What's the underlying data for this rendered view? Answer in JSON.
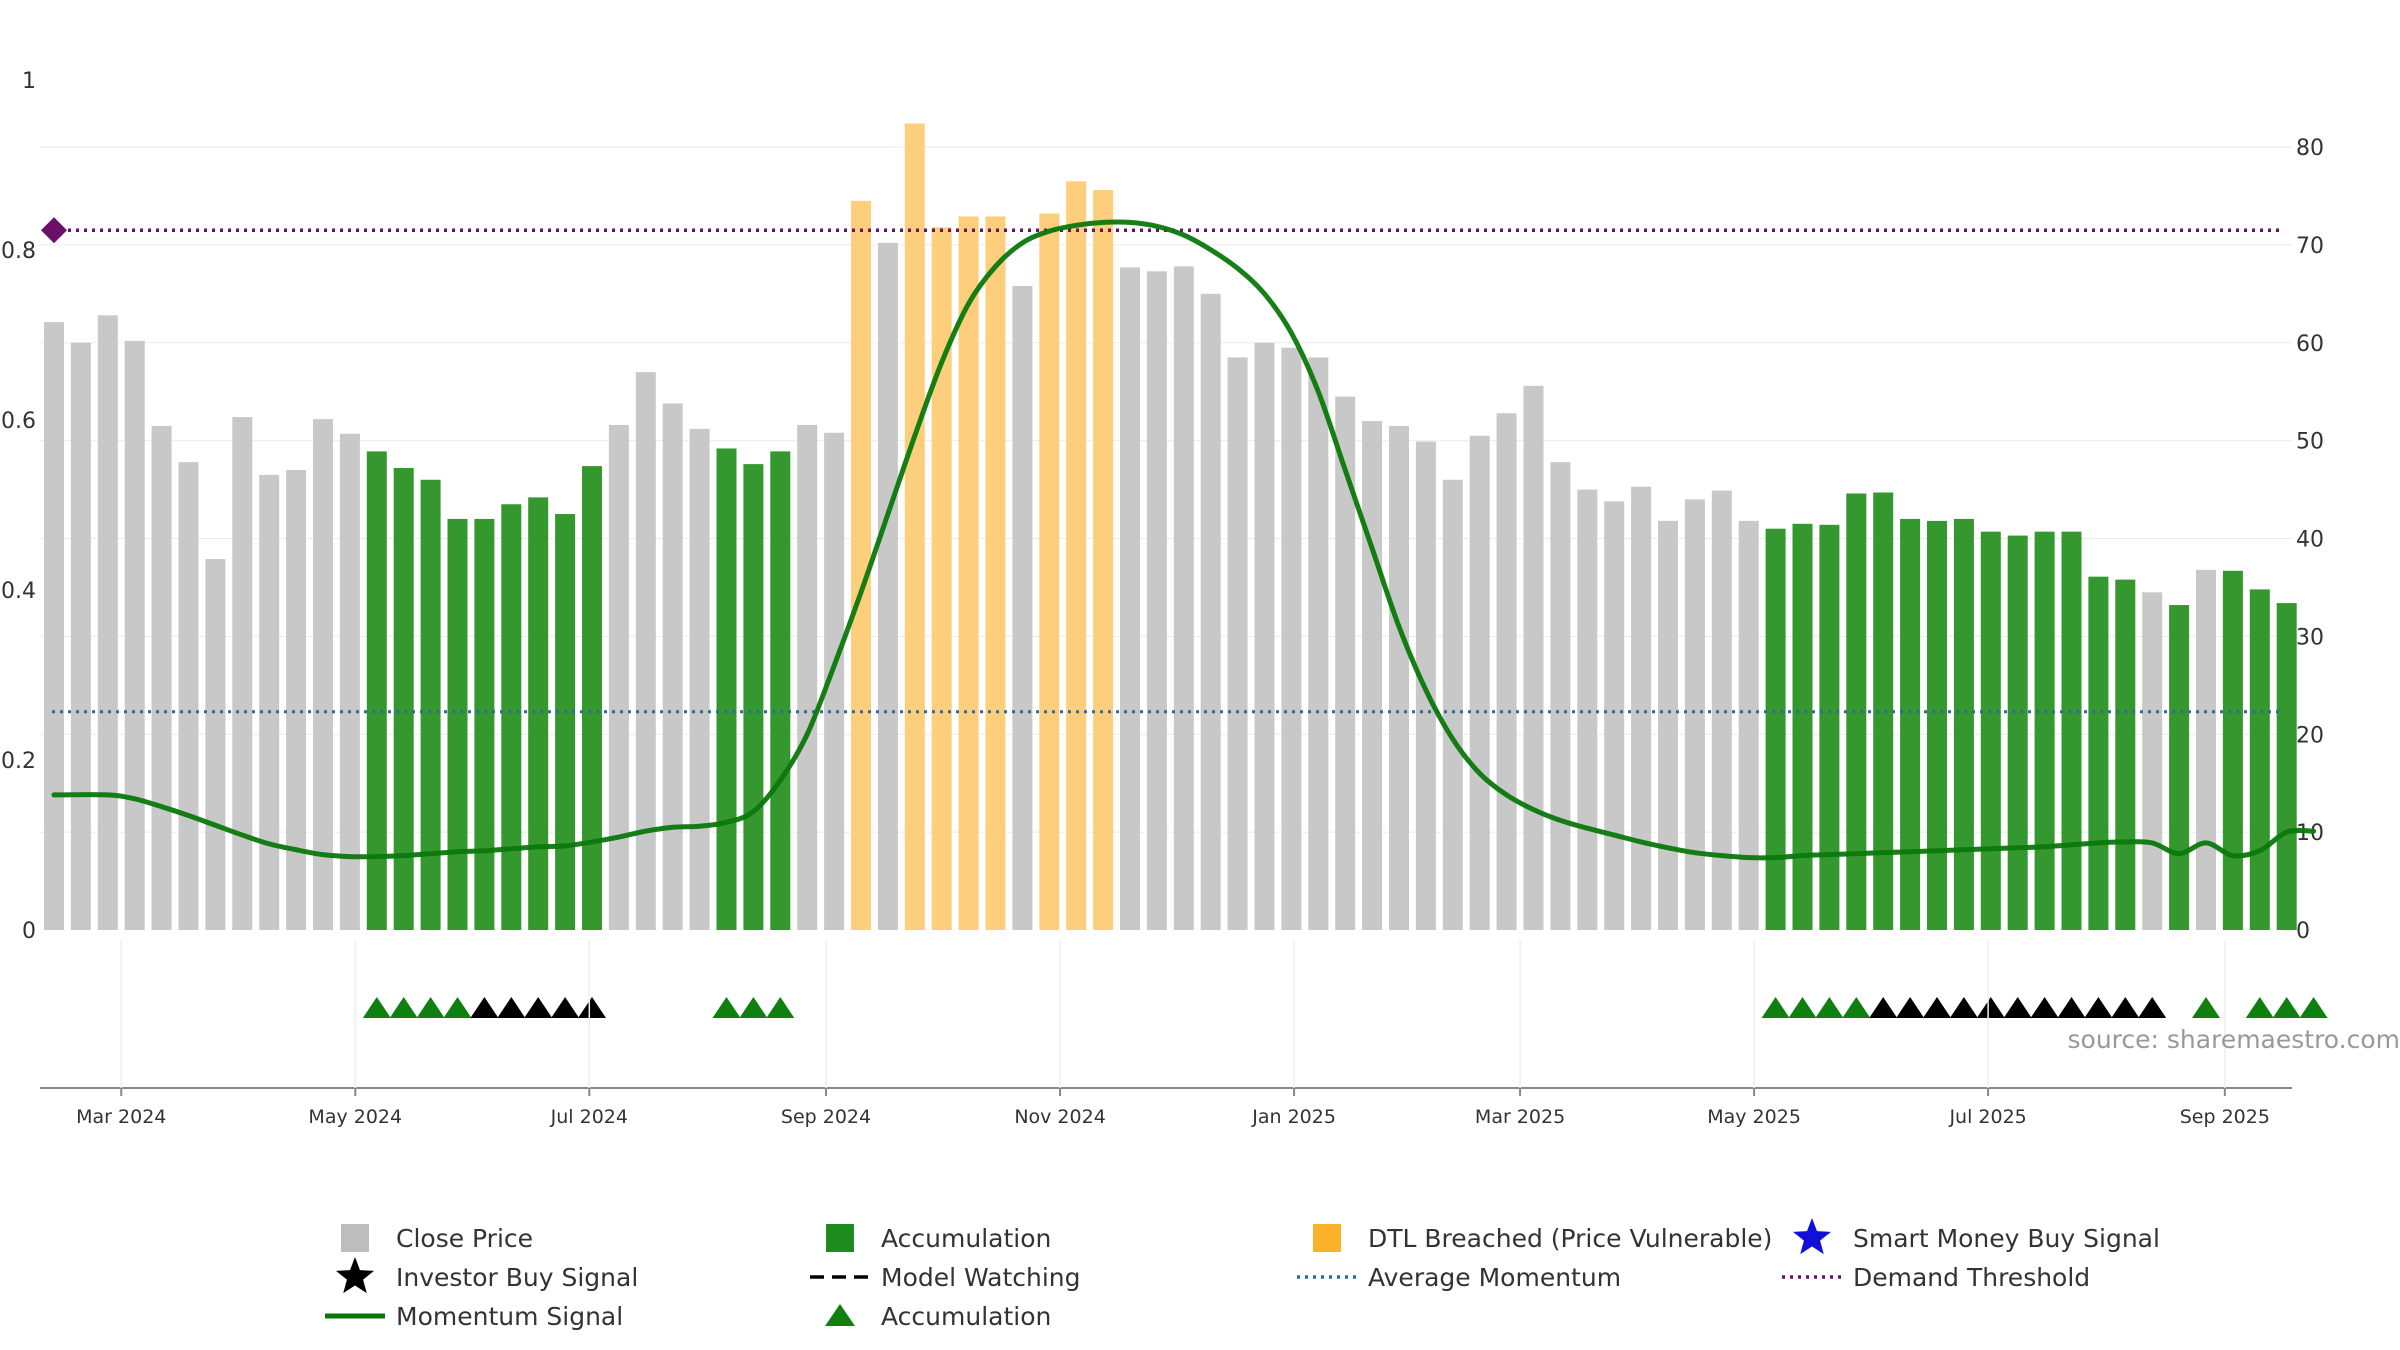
{
  "chart_data": {
    "type": "bar",
    "source": "source: sharemaestro.com",
    "left_axis": {
      "ticks": [
        "0",
        "0.2",
        "0.4",
        "0.6",
        "0.8",
        "1"
      ],
      "range": [
        0,
        1
      ]
    },
    "right_axis": {
      "ticks": [
        "0",
        "10",
        "20",
        "30",
        "40",
        "50",
        "60",
        "70",
        "80"
      ],
      "range": [
        0,
        80
      ]
    },
    "x_axis": {
      "ticks": [
        {
          "label": "Mar 2024",
          "index": 2.5
        },
        {
          "label": "May 2024",
          "index": 11.2
        },
        {
          "label": "Jul 2024",
          "index": 19.9
        },
        {
          "label": "Sep 2024",
          "index": 28.7
        },
        {
          "label": "Nov 2024",
          "index": 37.4
        },
        {
          "label": "Jan 2025",
          "index": 46.1
        },
        {
          "label": "Mar 2025",
          "index": 54.5
        },
        {
          "label": "May 2025",
          "index": 63.2
        },
        {
          "label": "Jul 2025",
          "index": 71.9
        },
        {
          "label": "Sep 2025",
          "index": 80.7
        }
      ]
    },
    "bars": [
      {
        "v": 62.1,
        "c": "gray"
      },
      {
        "v": 60.0,
        "c": "gray"
      },
      {
        "v": 62.8,
        "c": "gray"
      },
      {
        "v": 60.2,
        "c": "gray"
      },
      {
        "v": 51.5,
        "c": "gray"
      },
      {
        "v": 47.8,
        "c": "gray"
      },
      {
        "v": 37.9,
        "c": "gray"
      },
      {
        "v": 52.4,
        "c": "gray"
      },
      {
        "v": 46.5,
        "c": "gray"
      },
      {
        "v": 47.0,
        "c": "gray"
      },
      {
        "v": 52.2,
        "c": "gray"
      },
      {
        "v": 50.7,
        "c": "gray"
      },
      {
        "v": 48.9,
        "c": "green"
      },
      {
        "v": 47.2,
        "c": "green"
      },
      {
        "v": 46.0,
        "c": "green"
      },
      {
        "v": 42.0,
        "c": "green"
      },
      {
        "v": 42.0,
        "c": "green"
      },
      {
        "v": 43.5,
        "c": "green"
      },
      {
        "v": 44.2,
        "c": "green"
      },
      {
        "v": 42.5,
        "c": "green"
      },
      {
        "v": 47.4,
        "c": "green"
      },
      {
        "v": 51.6,
        "c": "gray"
      },
      {
        "v": 57.0,
        "c": "gray"
      },
      {
        "v": 53.8,
        "c": "gray"
      },
      {
        "v": 51.2,
        "c": "gray"
      },
      {
        "v": 49.2,
        "c": "green"
      },
      {
        "v": 47.6,
        "c": "green"
      },
      {
        "v": 48.9,
        "c": "green"
      },
      {
        "v": 51.6,
        "c": "gray"
      },
      {
        "v": 50.8,
        "c": "gray"
      },
      {
        "v": 74.5,
        "c": "orange"
      },
      {
        "v": 70.2,
        "c": "gray"
      },
      {
        "v": 82.4,
        "c": "orange"
      },
      {
        "v": 71.8,
        "c": "orange"
      },
      {
        "v": 72.9,
        "c": "orange"
      },
      {
        "v": 72.9,
        "c": "orange"
      },
      {
        "v": 65.8,
        "c": "gray"
      },
      {
        "v": 73.2,
        "c": "orange"
      },
      {
        "v": 76.5,
        "c": "orange"
      },
      {
        "v": 75.6,
        "c": "orange"
      },
      {
        "v": 67.7,
        "c": "gray"
      },
      {
        "v": 67.3,
        "c": "gray"
      },
      {
        "v": 67.8,
        "c": "gray"
      },
      {
        "v": 65.0,
        "c": "gray"
      },
      {
        "v": 58.5,
        "c": "gray"
      },
      {
        "v": 60.0,
        "c": "gray"
      },
      {
        "v": 59.5,
        "c": "gray"
      },
      {
        "v": 58.5,
        "c": "gray"
      },
      {
        "v": 54.5,
        "c": "gray"
      },
      {
        "v": 52.0,
        "c": "gray"
      },
      {
        "v": 51.5,
        "c": "gray"
      },
      {
        "v": 49.9,
        "c": "gray"
      },
      {
        "v": 46.0,
        "c": "gray"
      },
      {
        "v": 50.5,
        "c": "gray"
      },
      {
        "v": 52.8,
        "c": "gray"
      },
      {
        "v": 55.6,
        "c": "gray"
      },
      {
        "v": 47.8,
        "c": "gray"
      },
      {
        "v": 45.0,
        "c": "gray"
      },
      {
        "v": 43.8,
        "c": "gray"
      },
      {
        "v": 45.3,
        "c": "gray"
      },
      {
        "v": 41.8,
        "c": "gray"
      },
      {
        "v": 44.0,
        "c": "gray"
      },
      {
        "v": 44.9,
        "c": "gray"
      },
      {
        "v": 41.8,
        "c": "gray"
      },
      {
        "v": 41.0,
        "c": "green"
      },
      {
        "v": 41.5,
        "c": "green"
      },
      {
        "v": 41.4,
        "c": "green"
      },
      {
        "v": 44.6,
        "c": "green"
      },
      {
        "v": 44.7,
        "c": "green"
      },
      {
        "v": 42.0,
        "c": "green"
      },
      {
        "v": 41.8,
        "c": "green"
      },
      {
        "v": 42.0,
        "c": "green"
      },
      {
        "v": 40.7,
        "c": "green"
      },
      {
        "v": 40.3,
        "c": "green"
      },
      {
        "v": 40.7,
        "c": "green"
      },
      {
        "v": 40.7,
        "c": "green"
      },
      {
        "v": 36.1,
        "c": "green"
      },
      {
        "v": 35.8,
        "c": "green"
      },
      {
        "v": 34.5,
        "c": "gray"
      },
      {
        "v": 33.2,
        "c": "green"
      },
      {
        "v": 36.8,
        "c": "gray"
      },
      {
        "v": 36.7,
        "c": "green"
      },
      {
        "v": 34.8,
        "c": "green"
      },
      {
        "v": 33.4,
        "c": "green"
      }
    ],
    "momentum": [
      [
        0,
        13.8
      ],
      [
        2,
        13.8
      ],
      [
        3,
        13.4
      ],
      [
        4,
        12.6
      ],
      [
        5,
        11.7
      ],
      [
        6,
        10.7
      ],
      [
        7,
        9.7
      ],
      [
        8,
        8.8
      ],
      [
        9,
        8.2
      ],
      [
        10,
        7.7
      ],
      [
        11,
        7.5
      ],
      [
        12,
        7.5
      ],
      [
        13,
        7.6
      ],
      [
        14,
        7.8
      ],
      [
        15,
        8.0
      ],
      [
        16,
        8.1
      ],
      [
        17,
        8.3
      ],
      [
        18,
        8.5
      ],
      [
        19,
        8.6
      ],
      [
        20,
        9.0
      ],
      [
        21,
        9.5
      ],
      [
        22,
        10.1
      ],
      [
        23,
        10.5
      ],
      [
        24,
        10.6
      ],
      [
        25,
        11.0
      ],
      [
        26,
        12.1
      ],
      [
        27,
        15.3
      ],
      [
        28,
        20.0
      ],
      [
        29,
        27.0
      ],
      [
        30,
        34.5
      ],
      [
        31,
        42.5
      ],
      [
        32,
        50.5
      ],
      [
        33,
        58.0
      ],
      [
        34,
        64.0
      ],
      [
        35,
        67.8
      ],
      [
        36,
        70.2
      ],
      [
        37,
        71.4
      ],
      [
        38,
        72.0
      ],
      [
        39,
        72.3
      ],
      [
        40,
        72.3
      ],
      [
        41,
        71.9
      ],
      [
        42,
        71.0
      ],
      [
        43,
        69.5
      ],
      [
        44,
        67.6
      ],
      [
        45,
        65.0
      ],
      [
        46,
        61.0
      ],
      [
        47,
        55.0
      ],
      [
        48,
        47.0
      ],
      [
        49,
        39.0
      ],
      [
        50,
        31.0
      ],
      [
        51,
        24.5
      ],
      [
        52,
        19.5
      ],
      [
        53,
        16.0
      ],
      [
        54,
        13.8
      ],
      [
        55,
        12.3
      ],
      [
        56,
        11.2
      ],
      [
        57,
        10.4
      ],
      [
        58,
        9.7
      ],
      [
        59,
        9.0
      ],
      [
        60,
        8.4
      ],
      [
        61,
        7.9
      ],
      [
        62,
        7.6
      ],
      [
        63,
        7.4
      ],
      [
        64,
        7.4
      ],
      [
        65,
        7.6
      ],
      [
        66,
        7.7
      ],
      [
        67,
        7.8
      ],
      [
        68,
        7.9
      ],
      [
        69,
        8.0
      ],
      [
        70,
        8.1
      ],
      [
        71,
        8.2
      ],
      [
        72,
        8.3
      ],
      [
        73,
        8.4
      ],
      [
        74,
        8.5
      ],
      [
        75,
        8.7
      ],
      [
        76,
        8.9
      ],
      [
        77,
        9.0
      ],
      [
        78,
        8.9
      ],
      [
        79,
        7.8
      ],
      [
        80,
        8.9
      ],
      [
        81,
        7.6
      ],
      [
        82,
        8.1
      ],
      [
        83,
        10.0
      ],
      [
        84,
        10.1
      ]
    ],
    "average_momentum": 22.3,
    "demand_threshold": 71.5,
    "threshold_marker_index": 0,
    "signals": [
      {
        "i": 12,
        "s": "tri"
      },
      {
        "i": 13,
        "s": "tri"
      },
      {
        "i": 14,
        "s": "tri"
      },
      {
        "i": 15,
        "s": "tri"
      },
      {
        "i": 16,
        "s": "star"
      },
      {
        "i": 17,
        "s": "star"
      },
      {
        "i": 18,
        "s": "star"
      },
      {
        "i": 19,
        "s": "star"
      },
      {
        "i": 20,
        "s": "star"
      },
      {
        "i": 25,
        "s": "tri"
      },
      {
        "i": 26,
        "s": "tri"
      },
      {
        "i": 27,
        "s": "tri"
      },
      {
        "i": 64,
        "s": "tri"
      },
      {
        "i": 65,
        "s": "tri"
      },
      {
        "i": 66,
        "s": "tri"
      },
      {
        "i": 67,
        "s": "tri"
      },
      {
        "i": 68,
        "s": "star"
      },
      {
        "i": 69,
        "s": "star"
      },
      {
        "i": 70,
        "s": "star"
      },
      {
        "i": 71,
        "s": "star"
      },
      {
        "i": 72,
        "s": "star"
      },
      {
        "i": 73,
        "s": "star"
      },
      {
        "i": 74,
        "s": "star"
      },
      {
        "i": 75,
        "s": "star"
      },
      {
        "i": 76,
        "s": "star"
      },
      {
        "i": 77,
        "s": "star"
      },
      {
        "i": 78,
        "s": "star"
      },
      {
        "i": 80,
        "s": "tri"
      },
      {
        "i": 82,
        "s": "tri"
      },
      {
        "i": 83,
        "s": "tri"
      },
      {
        "i": 84,
        "s": "tri"
      }
    ],
    "legend": [
      {
        "label": "Close Price",
        "symbol": "square",
        "color": "#bdbdbd"
      },
      {
        "label": "Accumulation",
        "symbol": "square",
        "color": "#1e8c1e"
      },
      {
        "label": "DTL Breached (Price Vulnerable)",
        "symbol": "square",
        "color": "#fbb22a"
      },
      {
        "label": "Smart Money Buy Signal",
        "symbol": "star",
        "color": "#1010d8"
      },
      {
        "label": "Investor Buy Signal",
        "symbol": "star",
        "color": "#000000"
      },
      {
        "label": "Model Watching",
        "symbol": "dash",
        "color": "#000000"
      },
      {
        "label": "Average Momentum",
        "symbol": "dotted",
        "color": "#2b6a9b"
      },
      {
        "label": "Demand Threshold",
        "symbol": "dotted",
        "color": "#6a106a"
      },
      {
        "label": "Momentum Signal",
        "symbol": "line",
        "color": "#0b780b"
      },
      {
        "label": "Accumulation",
        "symbol": "triangle",
        "color": "#0f7f0f"
      }
    ],
    "colors": {
      "gray": "#c8c8c8",
      "green": "#35982f",
      "orange": "#fdcf7d",
      "momentum": "#0b780b",
      "avg": "#2b6a9b",
      "threshold": "#6a106a",
      "tri": "#0f7f0f",
      "star": "#000000"
    }
  }
}
